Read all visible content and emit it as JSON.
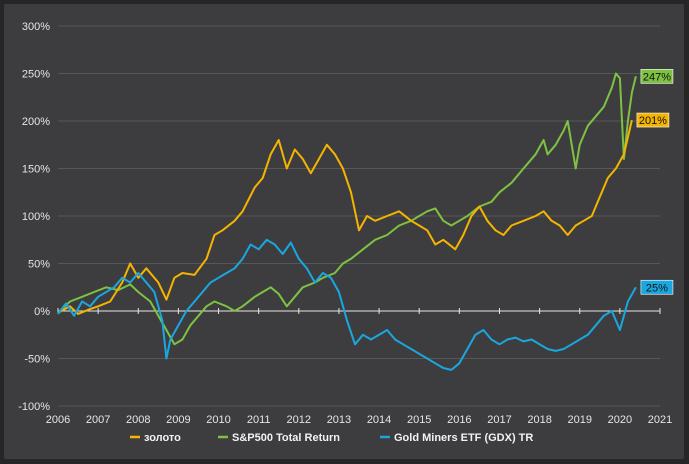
{
  "chart_data": {
    "type": "line",
    "title": "",
    "xlabel": "",
    "ylabel": "",
    "ylim": [
      -100,
      300
    ],
    "xlim": [
      2006,
      2021
    ],
    "grid": true,
    "legend_position": "bottom",
    "y_ticks": [
      "-100%",
      "-50%",
      "0%",
      "50%",
      "100%",
      "150%",
      "200%",
      "250%",
      "300%"
    ],
    "y_tick_values": [
      -100,
      -50,
      0,
      50,
      100,
      150,
      200,
      250,
      300
    ],
    "x_ticks": [
      "2006",
      "2007",
      "2008",
      "2009",
      "2010",
      "2011",
      "2012",
      "2013",
      "2014",
      "2015",
      "2016",
      "2017",
      "2018",
      "2019",
      "2020",
      "2021"
    ],
    "x_tick_values": [
      2006,
      2007,
      2008,
      2009,
      2010,
      2011,
      2012,
      2013,
      2014,
      2015,
      2016,
      2017,
      2018,
      2019,
      2020,
      2021
    ],
    "series": [
      {
        "name": "золото",
        "color": "#f5b400",
        "end_label": "201%",
        "points": [
          [
            2006.0,
            -2
          ],
          [
            2006.3,
            5
          ],
          [
            2006.5,
            -3
          ],
          [
            2006.8,
            2
          ],
          [
            2007.0,
            5
          ],
          [
            2007.3,
            10
          ],
          [
            2007.6,
            30
          ],
          [
            2007.8,
            50
          ],
          [
            2008.0,
            35
          ],
          [
            2008.2,
            45
          ],
          [
            2008.5,
            30
          ],
          [
            2008.7,
            12
          ],
          [
            2008.9,
            35
          ],
          [
            2009.1,
            40
          ],
          [
            2009.4,
            38
          ],
          [
            2009.7,
            55
          ],
          [
            2009.9,
            80
          ],
          [
            2010.1,
            85
          ],
          [
            2010.4,
            95
          ],
          [
            2010.6,
            105
          ],
          [
            2010.9,
            130
          ],
          [
            2011.1,
            140
          ],
          [
            2011.3,
            165
          ],
          [
            2011.5,
            180
          ],
          [
            2011.7,
            150
          ],
          [
            2011.9,
            170
          ],
          [
            2012.1,
            160
          ],
          [
            2012.3,
            145
          ],
          [
            2012.5,
            160
          ],
          [
            2012.7,
            175
          ],
          [
            2012.9,
            165
          ],
          [
            2013.1,
            150
          ],
          [
            2013.3,
            125
          ],
          [
            2013.5,
            85
          ],
          [
            2013.7,
            100
          ],
          [
            2013.9,
            95
          ],
          [
            2014.2,
            100
          ],
          [
            2014.5,
            105
          ],
          [
            2014.8,
            95
          ],
          [
            2015.0,
            90
          ],
          [
            2015.2,
            85
          ],
          [
            2015.4,
            70
          ],
          [
            2015.6,
            75
          ],
          [
            2015.9,
            65
          ],
          [
            2016.1,
            80
          ],
          [
            2016.3,
            100
          ],
          [
            2016.5,
            110
          ],
          [
            2016.7,
            95
          ],
          [
            2016.9,
            85
          ],
          [
            2017.1,
            80
          ],
          [
            2017.3,
            90
          ],
          [
            2017.6,
            95
          ],
          [
            2017.9,
            100
          ],
          [
            2018.1,
            105
          ],
          [
            2018.3,
            95
          ],
          [
            2018.5,
            90
          ],
          [
            2018.7,
            80
          ],
          [
            2018.9,
            90
          ],
          [
            2019.1,
            95
          ],
          [
            2019.3,
            100
          ],
          [
            2019.5,
            120
          ],
          [
            2019.7,
            140
          ],
          [
            2019.9,
            150
          ],
          [
            2020.1,
            165
          ],
          [
            2020.3,
            201
          ]
        ]
      },
      {
        "name": "S&P500 Total Return",
        "color": "#7dc241",
        "end_label": "247%",
        "points": [
          [
            2006.0,
            -2
          ],
          [
            2006.3,
            10
          ],
          [
            2006.6,
            15
          ],
          [
            2006.9,
            20
          ],
          [
            2007.2,
            25
          ],
          [
            2007.5,
            22
          ],
          [
            2007.8,
            28
          ],
          [
            2008.0,
            20
          ],
          [
            2008.3,
            10
          ],
          [
            2008.5,
            -5
          ],
          [
            2008.7,
            -20
          ],
          [
            2008.9,
            -35
          ],
          [
            2009.1,
            -30
          ],
          [
            2009.3,
            -15
          ],
          [
            2009.5,
            -5
          ],
          [
            2009.7,
            5
          ],
          [
            2009.9,
            10
          ],
          [
            2010.2,
            5
          ],
          [
            2010.4,
            0
          ],
          [
            2010.6,
            5
          ],
          [
            2010.9,
            15
          ],
          [
            2011.1,
            20
          ],
          [
            2011.3,
            25
          ],
          [
            2011.5,
            18
          ],
          [
            2011.7,
            5
          ],
          [
            2011.9,
            15
          ],
          [
            2012.1,
            25
          ],
          [
            2012.4,
            30
          ],
          [
            2012.6,
            35
          ],
          [
            2012.9,
            40
          ],
          [
            2013.1,
            50
          ],
          [
            2013.3,
            55
          ],
          [
            2013.6,
            65
          ],
          [
            2013.9,
            75
          ],
          [
            2014.2,
            80
          ],
          [
            2014.5,
            90
          ],
          [
            2014.8,
            95
          ],
          [
            2015.0,
            100
          ],
          [
            2015.2,
            105
          ],
          [
            2015.4,
            108
          ],
          [
            2015.6,
            95
          ],
          [
            2015.8,
            90
          ],
          [
            2016.0,
            95
          ],
          [
            2016.2,
            100
          ],
          [
            2016.5,
            110
          ],
          [
            2016.8,
            115
          ],
          [
            2017.0,
            125
          ],
          [
            2017.3,
            135
          ],
          [
            2017.6,
            150
          ],
          [
            2017.9,
            165
          ],
          [
            2018.1,
            180
          ],
          [
            2018.2,
            165
          ],
          [
            2018.4,
            175
          ],
          [
            2018.6,
            190
          ],
          [
            2018.7,
            200
          ],
          [
            2018.9,
            150
          ],
          [
            2019.0,
            175
          ],
          [
            2019.2,
            195
          ],
          [
            2019.4,
            205
          ],
          [
            2019.6,
            215
          ],
          [
            2019.8,
            235
          ],
          [
            2019.9,
            250
          ],
          [
            2020.0,
            245
          ],
          [
            2020.1,
            160
          ],
          [
            2020.2,
            200
          ],
          [
            2020.3,
            230
          ],
          [
            2020.4,
            247
          ]
        ]
      },
      {
        "name": "Gold Miners ETF (GDX) TR",
        "color": "#1aa7e0",
        "end_label": "25%",
        "points": [
          [
            2006.0,
            -3
          ],
          [
            2006.2,
            8
          ],
          [
            2006.4,
            -5
          ],
          [
            2006.6,
            10
          ],
          [
            2006.8,
            5
          ],
          [
            2007.0,
            15
          ],
          [
            2007.2,
            20
          ],
          [
            2007.4,
            25
          ],
          [
            2007.6,
            35
          ],
          [
            2007.8,
            30
          ],
          [
            2008.0,
            40
          ],
          [
            2008.2,
            30
          ],
          [
            2008.4,
            20
          ],
          [
            2008.6,
            -10
          ],
          [
            2008.7,
            -50
          ],
          [
            2008.8,
            -30
          ],
          [
            2009.0,
            -15
          ],
          [
            2009.2,
            0
          ],
          [
            2009.4,
            10
          ],
          [
            2009.6,
            20
          ],
          [
            2009.8,
            30
          ],
          [
            2010.0,
            35
          ],
          [
            2010.2,
            40
          ],
          [
            2010.4,
            45
          ],
          [
            2010.6,
            55
          ],
          [
            2010.8,
            70
          ],
          [
            2011.0,
            65
          ],
          [
            2011.2,
            75
          ],
          [
            2011.4,
            70
          ],
          [
            2011.6,
            60
          ],
          [
            2011.8,
            72
          ],
          [
            2012.0,
            55
          ],
          [
            2012.2,
            45
          ],
          [
            2012.4,
            30
          ],
          [
            2012.6,
            40
          ],
          [
            2012.8,
            35
          ],
          [
            2013.0,
            20
          ],
          [
            2013.2,
            -10
          ],
          [
            2013.4,
            -35
          ],
          [
            2013.6,
            -25
          ],
          [
            2013.8,
            -30
          ],
          [
            2014.0,
            -25
          ],
          [
            2014.2,
            -20
          ],
          [
            2014.4,
            -30
          ],
          [
            2014.6,
            -35
          ],
          [
            2014.8,
            -40
          ],
          [
            2015.0,
            -45
          ],
          [
            2015.2,
            -50
          ],
          [
            2015.4,
            -55
          ],
          [
            2015.6,
            -60
          ],
          [
            2015.8,
            -62
          ],
          [
            2016.0,
            -55
          ],
          [
            2016.2,
            -40
          ],
          [
            2016.4,
            -25
          ],
          [
            2016.6,
            -20
          ],
          [
            2016.8,
            -30
          ],
          [
            2017.0,
            -35
          ],
          [
            2017.2,
            -30
          ],
          [
            2017.4,
            -28
          ],
          [
            2017.6,
            -32
          ],
          [
            2017.8,
            -30
          ],
          [
            2018.0,
            -35
          ],
          [
            2018.2,
            -40
          ],
          [
            2018.4,
            -42
          ],
          [
            2018.6,
            -40
          ],
          [
            2018.8,
            -35
          ],
          [
            2019.0,
            -30
          ],
          [
            2019.2,
            -25
          ],
          [
            2019.4,
            -15
          ],
          [
            2019.6,
            -5
          ],
          [
            2019.8,
            0
          ],
          [
            2020.0,
            -20
          ],
          [
            2020.1,
            -5
          ],
          [
            2020.2,
            10
          ],
          [
            2020.4,
            25
          ]
        ]
      }
    ]
  }
}
